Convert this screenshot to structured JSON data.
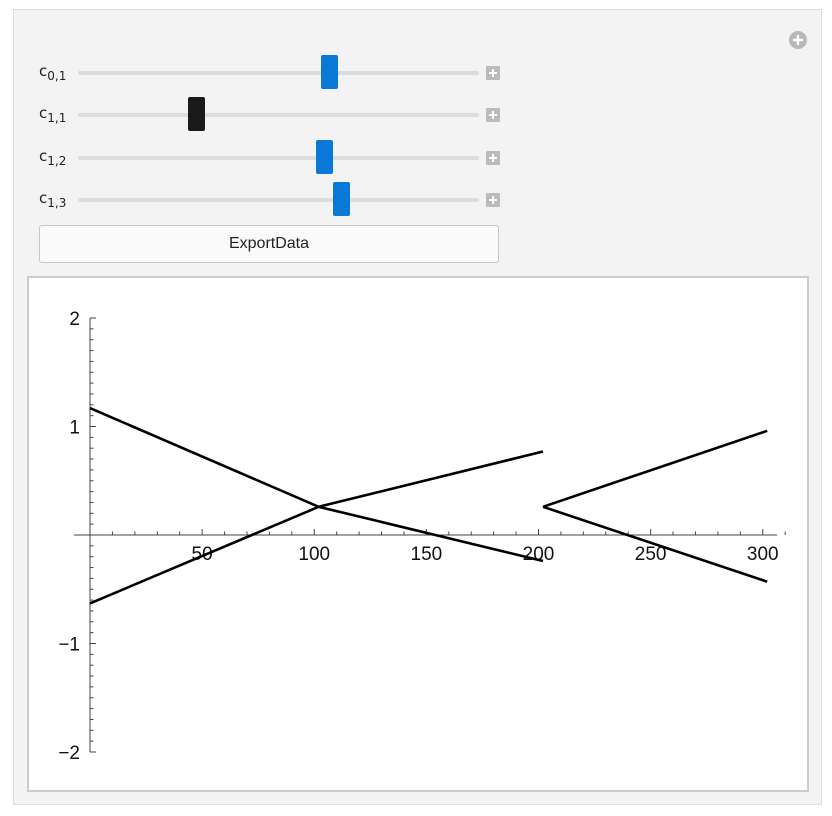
{
  "controls": {
    "sliders": [
      {
        "base": "c",
        "sub": "0,1",
        "position": 0.625,
        "active": false
      },
      {
        "base": "c",
        "sub": "1,1",
        "position": 0.295,
        "active": true
      },
      {
        "base": "c",
        "sub": "1,2",
        "position": 0.613,
        "active": false
      },
      {
        "base": "c",
        "sub": "1,3",
        "position": 0.655,
        "active": false
      }
    ],
    "export_label": "ExportData",
    "add_icon": "plus-circle-icon",
    "step_icon": "plus-square-icon",
    "accent_color": "#0a78d7"
  },
  "chart_data": {
    "type": "line",
    "x_ticks": [
      "50",
      "100",
      "150",
      "200",
      "250",
      "300"
    ],
    "y_ticks": [
      "2",
      "1",
      "−1",
      "−2"
    ],
    "xlim": [
      0,
      310
    ],
    "ylim": [
      -2,
      2
    ],
    "series": [
      {
        "x": [
          0,
          102,
          202
        ],
        "y": [
          1.17,
          0.26,
          -0.24
        ]
      },
      {
        "x": [
          0,
          102,
          202
        ],
        "y": [
          -0.63,
          0.26,
          0.77
        ]
      },
      {
        "x": [
          202,
          302
        ],
        "y": [
          0.26,
          0.96
        ]
      },
      {
        "x": [
          202,
          302
        ],
        "y": [
          0.26,
          -0.43
        ]
      }
    ]
  }
}
